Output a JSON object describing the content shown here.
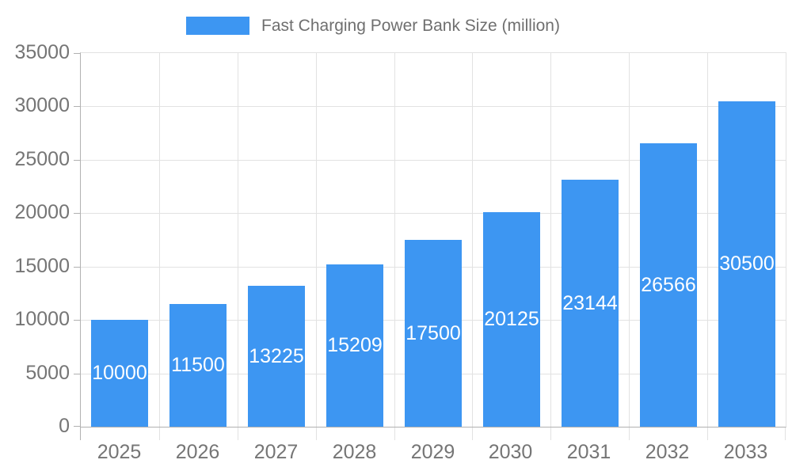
{
  "chart_data": {
    "type": "bar",
    "title": "Fast Charging Power Bank Size (million)",
    "categories": [
      "2025",
      "2026",
      "2027",
      "2028",
      "2029",
      "2030",
      "2031",
      "2032",
      "2033"
    ],
    "series": [
      {
        "name": "Fast Charging Power Bank Size (million)",
        "values": [
          10000,
          11500,
          13225,
          15209,
          17500,
          20125,
          23144,
          26566,
          30500
        ]
      }
    ],
    "xlabel": "",
    "ylabel": "",
    "ylim": [
      0,
      35000
    ],
    "yticks": [
      0,
      5000,
      10000,
      15000,
      20000,
      25000,
      30000,
      35000
    ],
    "grid": true,
    "legend_position": "top",
    "value_label_position": "inside-middle",
    "colors": {
      "bar": "#3d96f2",
      "grid": "#e2e2e2",
      "axis": "#b1b1b1",
      "tick_text": "#757575",
      "legend_text": "#6f6f6f",
      "bar_label": "#ffffff",
      "background": "#ffffff"
    }
  }
}
